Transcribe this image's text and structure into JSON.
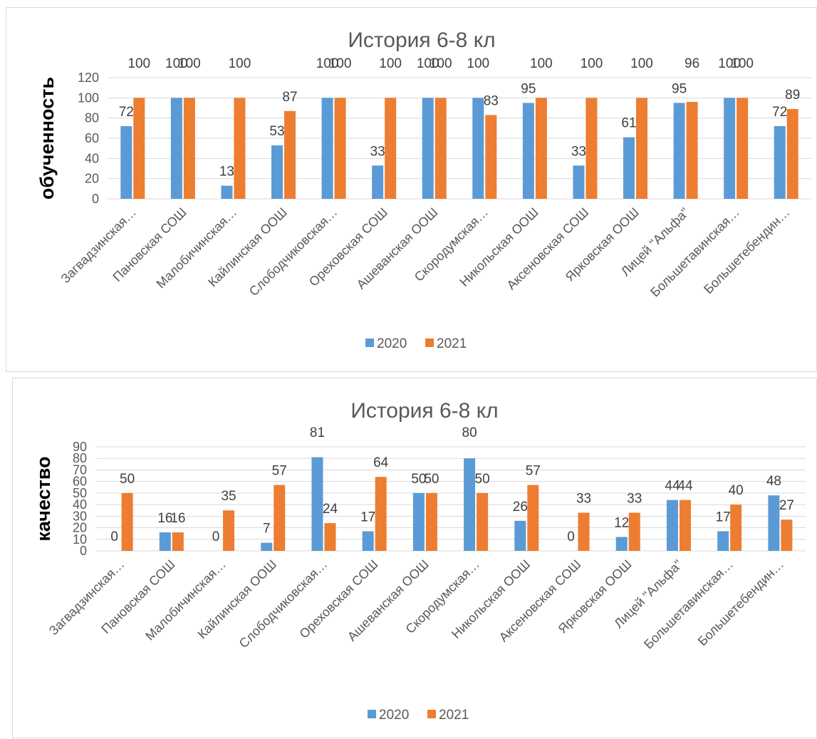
{
  "colors": {
    "series_2020": "#5b9bd5",
    "series_2021": "#ed7d31",
    "grid": "#d9d9d9",
    "text": "#595959",
    "label": "#404040"
  },
  "chart_data": [
    {
      "type": "bar",
      "title": "История 6-8 кл",
      "ylabel": "обученность",
      "ylim": [
        0,
        120
      ],
      "yticks": [
        0,
        20,
        40,
        60,
        80,
        100,
        120
      ],
      "grid": true,
      "legend_position": "bottom",
      "categories": [
        "Загвадзинская…",
        "Пановская СОШ",
        "Малобичинская…",
        "Кайлинская ООШ",
        "Слободчиковская…",
        "Ореховская СОШ",
        "Ашеванская ООШ",
        "Скородумская…",
        "Никольская ООШ",
        "Аксеновская СОШ",
        "Ярковская ООШ",
        "Лицей \"Альфа\"",
        "Большетавинская…",
        "Большетебендин…"
      ],
      "series": [
        {
          "name": "2020",
          "values": [
            72,
            100,
            13,
            53,
            100,
            33,
            100,
            100,
            95,
            33,
            61,
            95,
            100,
            72
          ]
        },
        {
          "name": "2021",
          "values": [
            100,
            100,
            100,
            87,
            100,
            100,
            100,
            83,
            100,
            100,
            100,
            96,
            100,
            89
          ]
        }
      ]
    },
    {
      "type": "bar",
      "title": "История 6-8 кл",
      "ylabel": "качество",
      "ylim": [
        0,
        90
      ],
      "yticks": [
        0,
        10,
        20,
        30,
        40,
        50,
        60,
        70,
        80,
        90
      ],
      "grid": true,
      "legend_position": "bottom",
      "categories": [
        "Загвадзинская…",
        "Пановская СОШ",
        "Малобичинская…",
        "Кайлинская ООШ",
        "Слободчиковская…",
        "Ореховская СОШ",
        "Ашеванская ООШ",
        "Скородумская…",
        "Никольская ООШ",
        "Аксеновская СОШ",
        "Ярковская ООШ",
        "Лицей \"Альфа\"",
        "Большетавинская…",
        "Большетебендин…"
      ],
      "series": [
        {
          "name": "2020",
          "values": [
            0,
            16,
            0,
            7,
            81,
            17,
            50,
            80,
            26,
            0,
            12,
            44,
            17,
            48
          ]
        },
        {
          "name": "2021",
          "values": [
            50,
            16,
            35,
            57,
            24,
            64,
            50,
            50,
            57,
            33,
            33,
            44,
            40,
            27
          ]
        }
      ]
    }
  ]
}
